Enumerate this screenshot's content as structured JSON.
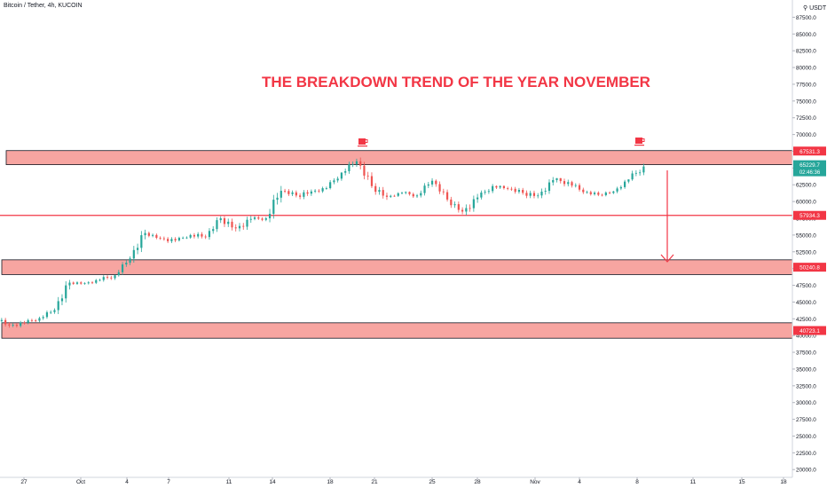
{
  "header": {
    "symbol": "Bitcoin / Tether, 4h, KUCOIN",
    "unit": "USDT"
  },
  "chart_data": {
    "type": "candlestick",
    "title": "THE BREAKDOWN TREND OF THE YEAR NOVEMBER",
    "ylim": [
      20000,
      90000
    ],
    "y_ticks": [
      "20000.0",
      "22500.0",
      "25000.0",
      "27500.0",
      "30000.0",
      "32500.0",
      "35000.0",
      "37500.0",
      "40000.0",
      "42500.0",
      "45000.0",
      "47500.0",
      "50000.0",
      "52500.0",
      "55000.0",
      "57500.0",
      "60000.0",
      "62500.0",
      "65000.0",
      "67500.0",
      "70000.0",
      "72500.0",
      "75000.0",
      "77500.0",
      "80000.0",
      "82500.0",
      "85000.0",
      "87500.0"
    ],
    "x_ticks": [
      "27",
      "Oct",
      "4",
      "7",
      "11",
      "14",
      "18",
      "21",
      "25",
      "28",
      "Nov",
      "4",
      "8",
      "11",
      "15",
      "18"
    ],
    "series": [
      {
        "date": "Sep 27",
        "open": 42800,
        "high": 43600,
        "low": 40900,
        "close": 41500
      },
      {
        "date": "Sep 28",
        "open": 41500,
        "high": 42900,
        "low": 40800,
        "close": 41900
      },
      {
        "date": "Sep 29",
        "open": 41900,
        "high": 43100,
        "low": 41300,
        "close": 42600
      },
      {
        "date": "Sep 30",
        "open": 42600,
        "high": 44200,
        "low": 42000,
        "close": 43800
      },
      {
        "date": "Oct 1",
        "open": 43800,
        "high": 48300,
        "low": 43200,
        "close": 47900
      },
      {
        "date": "Oct 2",
        "open": 47900,
        "high": 48500,
        "low": 47200,
        "close": 47800
      },
      {
        "date": "Oct 3",
        "open": 47800,
        "high": 49000,
        "low": 47500,
        "close": 48300
      },
      {
        "date": "Oct 4",
        "open": 48300,
        "high": 49100,
        "low": 46900,
        "close": 49000
      },
      {
        "date": "Oct 5",
        "open": 49000,
        "high": 51800,
        "low": 48800,
        "close": 51500
      },
      {
        "date": "Oct 6",
        "open": 51500,
        "high": 55800,
        "low": 50600,
        "close": 55300
      },
      {
        "date": "Oct 7",
        "open": 55300,
        "high": 55600,
        "low": 53800,
        "close": 54500
      },
      {
        "date": "Oct 8",
        "open": 54500,
        "high": 56000,
        "low": 53700,
        "close": 54200
      },
      {
        "date": "Oct 9",
        "open": 54200,
        "high": 55400,
        "low": 53900,
        "close": 55000
      },
      {
        "date": "Oct 10",
        "open": 55000,
        "high": 56500,
        "low": 54100,
        "close": 54700
      },
      {
        "date": "Oct 11",
        "open": 54700,
        "high": 57800,
        "low": 54300,
        "close": 57500
      },
      {
        "date": "Oct 12",
        "open": 57500,
        "high": 57800,
        "low": 53900,
        "close": 56000
      },
      {
        "date": "Oct 13",
        "open": 56000,
        "high": 58400,
        "low": 54600,
        "close": 57400
      },
      {
        "date": "Oct 14",
        "open": 57400,
        "high": 58500,
        "low": 56800,
        "close": 57500
      },
      {
        "date": "Oct 15",
        "open": 57500,
        "high": 62900,
        "low": 56900,
        "close": 61600
      },
      {
        "date": "Oct 16",
        "open": 61600,
        "high": 62600,
        "low": 60200,
        "close": 60900
      },
      {
        "date": "Oct 17",
        "open": 60900,
        "high": 61800,
        "low": 58900,
        "close": 61500
      },
      {
        "date": "Oct 18",
        "open": 61500,
        "high": 62600,
        "low": 60700,
        "close": 62000
      },
      {
        "date": "Oct 19",
        "open": 62000,
        "high": 64400,
        "low": 61800,
        "close": 64300
      },
      {
        "date": "Oct 20",
        "open": 64300,
        "high": 67000,
        "low": 63700,
        "close": 66000
      },
      {
        "date": "Oct 21",
        "open": 66000,
        "high": 66700,
        "low": 62000,
        "close": 62300
      },
      {
        "date": "Oct 22",
        "open": 62300,
        "high": 63700,
        "low": 60000,
        "close": 60700
      },
      {
        "date": "Oct 23",
        "open": 60700,
        "high": 61500,
        "low": 60200,
        "close": 61300
      },
      {
        "date": "Oct 24",
        "open": 61300,
        "high": 61500,
        "low": 59600,
        "close": 60900
      },
      {
        "date": "Oct 25",
        "open": 60900,
        "high": 63700,
        "low": 60600,
        "close": 63100
      },
      {
        "date": "Oct 26",
        "open": 63100,
        "high": 63300,
        "low": 60000,
        "close": 60300
      },
      {
        "date": "Oct 27",
        "open": 60300,
        "high": 61400,
        "low": 58100,
        "close": 58500
      },
      {
        "date": "Oct 28",
        "open": 58500,
        "high": 62400,
        "low": 57900,
        "close": 60600
      },
      {
        "date": "Oct 29",
        "open": 60600,
        "high": 62900,
        "low": 60300,
        "close": 62300
      },
      {
        "date": "Oct 30",
        "open": 62300,
        "high": 62400,
        "low": 60600,
        "close": 61900
      },
      {
        "date": "Oct 31",
        "open": 61900,
        "high": 62500,
        "low": 60100,
        "close": 61300
      },
      {
        "date": "Nov 1",
        "open": 61300,
        "high": 62400,
        "low": 59500,
        "close": 60900
      },
      {
        "date": "Nov 2",
        "open": 60900,
        "high": 64300,
        "low": 60500,
        "close": 63200
      },
      {
        "date": "Nov 3",
        "open": 63200,
        "high": 63500,
        "low": 60500,
        "close": 62900
      },
      {
        "date": "Nov 4",
        "open": 62900,
        "high": 63100,
        "low": 60700,
        "close": 61400
      },
      {
        "date": "Nov 5",
        "open": 61400,
        "high": 62600,
        "low": 60800,
        "close": 61000
      },
      {
        "date": "Nov 6",
        "open": 61000,
        "high": 61600,
        "low": 60100,
        "close": 61500
      },
      {
        "date": "Nov 7",
        "open": 61500,
        "high": 63300,
        "low": 61200,
        "close": 63300
      },
      {
        "date": "Nov 8",
        "open": 63300,
        "high": 66500,
        "low": 63100,
        "close": 65229.7
      }
    ],
    "zones": [
      {
        "label": "67531.3",
        "low": 65500,
        "high": 67600
      },
      {
        "label": "50240.8",
        "low": 49100,
        "high": 51300
      },
      {
        "label": "40723.1",
        "low": 39600,
        "high": 41900
      }
    ],
    "lines": [
      {
        "label": "57934.3",
        "value": 57934.3
      }
    ],
    "last_price": {
      "label": "65229.7",
      "countdown": "02:46:36"
    },
    "colors": {
      "up": "#26a69a",
      "down": "#ef5350",
      "zone_fill": "#f7a09c",
      "zone_stroke": "#131722",
      "line": "#f23645",
      "title": "#f23645",
      "price_tag": "#26a69a"
    },
    "annotations": {
      "arrow": "down",
      "icons": [
        "coffee-icon",
        "coffee-icon"
      ]
    }
  }
}
